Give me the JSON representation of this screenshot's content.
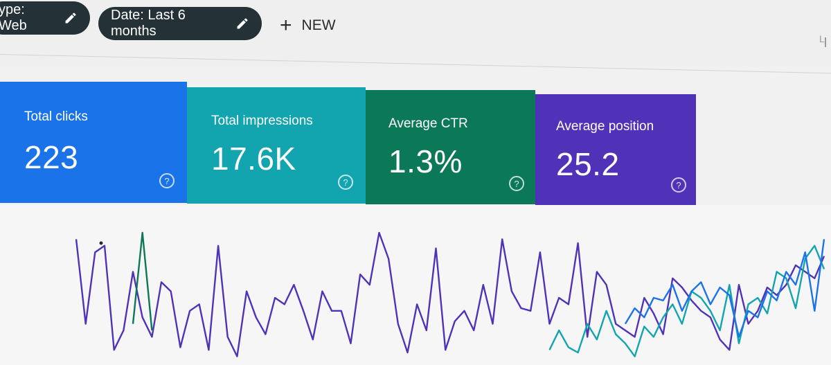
{
  "filters": {
    "type_chip": "ype: Web",
    "date_chip": "Date: Last 6 months",
    "new_label": "NEW",
    "edge_letter": "L"
  },
  "cards": [
    {
      "label": "Total clicks",
      "value": "223",
      "color": "#1a73e8"
    },
    {
      "label": "Total impressions",
      "value": "17.6K",
      "color": "#12a4af"
    },
    {
      "label": "Average CTR",
      "value": "1.3%",
      "color": "#0b7858"
    },
    {
      "label": "Average position",
      "value": "25.2",
      "color": "#5032b8"
    }
  ],
  "help_icon": "?",
  "chart_data": {
    "type": "line",
    "xlabel": "",
    "ylabel": "",
    "grid": false,
    "series": [
      {
        "color": "#5032b8",
        "x": [
          0,
          1,
          2,
          3,
          4,
          5,
          6,
          7,
          8,
          9,
          10,
          11,
          12,
          13,
          14,
          15,
          16,
          17,
          18,
          19,
          20,
          21,
          22,
          23,
          24,
          25,
          26,
          27,
          28,
          29,
          30,
          31,
          32,
          33,
          34,
          35,
          36,
          37,
          38,
          39,
          40,
          41,
          42,
          43,
          44,
          45,
          46,
          47,
          48,
          49,
          50,
          51,
          52,
          53,
          54,
          55,
          56,
          57,
          58,
          59,
          60,
          61,
          62,
          63,
          64,
          65,
          66,
          67,
          68,
          69,
          70,
          71,
          72,
          73,
          74,
          75,
          76,
          77,
          78,
          79
        ],
        "values": [
          95,
          30,
          85,
          90,
          10,
          25,
          70,
          35,
          20,
          62,
          55,
          12,
          40,
          45,
          10,
          90,
          20,
          5,
          55,
          35,
          22,
          50,
          45,
          60,
          40,
          18,
          55,
          40,
          40,
          15,
          68,
          60,
          100,
          80,
          30,
          8,
          45,
          25,
          88,
          10,
          32,
          40,
          25,
          60,
          30,
          95,
          55,
          42,
          40,
          85,
          30,
          50,
          45,
          92,
          20,
          70,
          60,
          30,
          25,
          20,
          50,
          38,
          22,
          65,
          58,
          48,
          40,
          35,
          18,
          10,
          60,
          30,
          40,
          58,
          52,
          60,
          75,
          70,
          65,
          82
        ]
      },
      {
        "color": "#12a4af",
        "x": [
          50,
          51,
          52,
          53,
          54,
          55,
          56,
          57,
          58,
          59,
          60,
          61,
          62,
          63,
          64,
          65,
          66,
          67,
          68,
          69,
          70,
          71,
          72,
          73,
          74,
          75,
          76,
          77,
          78,
          79
        ],
        "values": [
          10,
          25,
          12,
          8,
          30,
          18,
          40,
          22,
          15,
          5,
          28,
          20,
          35,
          45,
          30,
          55,
          50,
          40,
          25,
          60,
          15,
          45,
          50,
          38,
          70,
          65,
          42,
          80,
          90,
          72
        ]
      },
      {
        "color": "#1a73e8",
        "x": [
          58,
          59,
          60,
          61,
          62,
          63,
          64,
          65,
          66,
          67,
          68,
          69,
          70,
          71,
          72,
          73,
          74,
          75,
          76,
          77,
          78,
          79
        ],
        "values": [
          30,
          42,
          35,
          50,
          48,
          60,
          40,
          55,
          62,
          45,
          58,
          52,
          20,
          40,
          35,
          55,
          48,
          70,
          60,
          85,
          40,
          95
        ]
      },
      {
        "color": "#0b7858",
        "x": [
          6,
          7,
          8
        ],
        "values": [
          30,
          100,
          25
        ]
      }
    ]
  }
}
